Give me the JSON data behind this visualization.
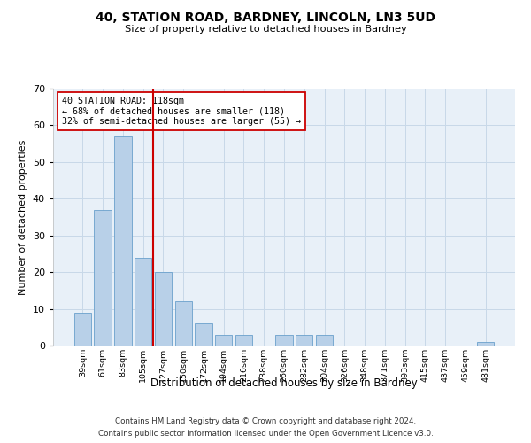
{
  "title": "40, STATION ROAD, BARDNEY, LINCOLN, LN3 5UD",
  "subtitle": "Size of property relative to detached houses in Bardney",
  "xlabel": "Distribution of detached houses by size in Bardney",
  "ylabel": "Number of detached properties",
  "categories": [
    "39sqm",
    "61sqm",
    "83sqm",
    "105sqm",
    "127sqm",
    "150sqm",
    "172sqm",
    "194sqm",
    "216sqm",
    "238sqm",
    "260sqm",
    "282sqm",
    "304sqm",
    "326sqm",
    "348sqm",
    "371sqm",
    "393sqm",
    "415sqm",
    "437sqm",
    "459sqm",
    "481sqm"
  ],
  "values": [
    9,
    37,
    57,
    24,
    20,
    12,
    6,
    3,
    3,
    0,
    3,
    3,
    3,
    0,
    0,
    0,
    0,
    0,
    0,
    0,
    1
  ],
  "bar_color": "#b8d0e8",
  "bar_edge_color": "#6aa0cc",
  "grid_color": "#c8d8e8",
  "background_color": "#e8f0f8",
  "vline_color": "#cc0000",
  "vline_x": 3.5,
  "annotation_text": "40 STATION ROAD: 118sqm\n← 68% of detached houses are smaller (118)\n32% of semi-detached houses are larger (55) →",
  "annotation_box_color": "#ffffff",
  "annotation_box_edge": "#cc0000",
  "ylim": [
    0,
    70
  ],
  "yticks": [
    0,
    10,
    20,
    30,
    40,
    50,
    60,
    70
  ],
  "footer_line1": "Contains HM Land Registry data © Crown copyright and database right 2024.",
  "footer_line2": "Contains public sector information licensed under the Open Government Licence v3.0."
}
